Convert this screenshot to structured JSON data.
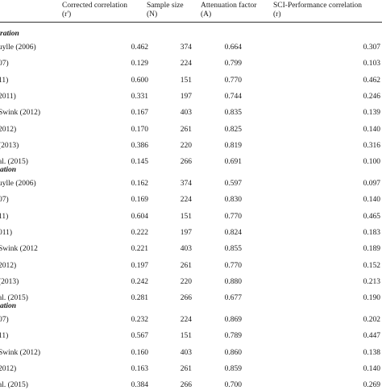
{
  "header": {
    "col1": {
      "title": "Corrected correlation",
      "sub": "(r')"
    },
    "col2": {
      "title": "Sample size",
      "sub": "(N)"
    },
    "col3": {
      "title": "Attenuation factor",
      "sub": "(A)"
    },
    "col4": {
      "title": "SCI-Performance correlation",
      "sub": "(r)"
    }
  },
  "sections": [
    {
      "label": "ration",
      "rows": [
        {
          "study": "uylle (2006)",
          "corrected": "0.462",
          "n": "374",
          "attenuation": "0.664",
          "r": "0.307"
        },
        {
          "study": "07)",
          "corrected": "0.129",
          "n": "224",
          "attenuation": "0.799",
          "r": "0.103"
        },
        {
          "study": "11)",
          "corrected": "0.600",
          "n": "151",
          "attenuation": "0.770",
          "r": "0.462"
        },
        {
          "study": "2011)",
          "corrected": "0.331",
          "n": "197",
          "attenuation": "0.744",
          "r": "0.246"
        },
        {
          "study": "Swink (2012)",
          "corrected": "0.167",
          "n": "403",
          "attenuation": "0.835",
          "r": "0.139"
        },
        {
          "study": "2012)",
          "corrected": "0.170",
          "n": "261",
          "attenuation": "0.825",
          "r": "0.140"
        },
        {
          "study": "(2013)",
          "corrected": "0.386",
          "n": "220",
          "attenuation": "0.819",
          "r": "0.316"
        },
        {
          "study": "al. (2015)",
          "corrected": "0.145",
          "n": "266",
          "attenuation": "0.691",
          "r": "0.100"
        }
      ]
    },
    {
      "label": "ation",
      "rows": [
        {
          "study": "uylle (2006)",
          "corrected": "0.162",
          "n": "374",
          "attenuation": "0.597",
          "r": "0.097"
        },
        {
          "study": "07)",
          "corrected": "0.169",
          "n": "224",
          "attenuation": "0.830",
          "r": "0.140"
        },
        {
          "study": "11)",
          "corrected": "0.604",
          "n": "151",
          "attenuation": "0.770",
          "r": "0.465"
        },
        {
          "study": "011)",
          "corrected": "0.222",
          "n": "197",
          "attenuation": "0.824",
          "r": "0.183"
        },
        {
          "study": "Swink (2012",
          "corrected": "0.221",
          "n": "403",
          "attenuation": "0.855",
          "r": "0.189"
        },
        {
          "study": "2012)",
          "corrected": "0.197",
          "n": "261",
          "attenuation": "0.770",
          "r": "0.152"
        },
        {
          "study": "(2013)",
          "corrected": "0.242",
          "n": "220",
          "attenuation": "0.880",
          "r": "0.213"
        },
        {
          "study": "al. (2015)",
          "corrected": "0.281",
          "n": "266",
          "attenuation": "0.677",
          "r": "0.190"
        }
      ]
    },
    {
      "label": "ation",
      "rows": [
        {
          "study": "07)",
          "corrected": "0.232",
          "n": "224",
          "attenuation": "0.869",
          "r": "0.202"
        },
        {
          "study": "11)",
          "corrected": "0.567",
          "n": "151",
          "attenuation": "0.789",
          "r": "0.447"
        },
        {
          "study": "Swink (2012)",
          "corrected": "0.160",
          "n": "403",
          "attenuation": "0.860",
          "r": "0.138"
        },
        {
          "study": "2012)",
          "corrected": "0.163",
          "n": "261",
          "attenuation": "0.859",
          "r": "0.140"
        },
        {
          "study": "al. (2015)",
          "corrected": "0.384",
          "n": "266",
          "attenuation": "0.700",
          "r": "0.269"
        }
      ]
    }
  ]
}
